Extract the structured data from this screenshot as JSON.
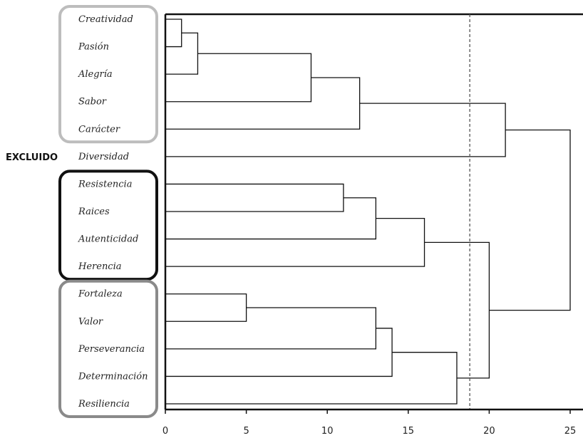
{
  "chart_data": {
    "type": "dendrogram",
    "orientation": "horizontal",
    "xlim": [
      0,
      25
    ],
    "x_ticks": [
      0,
      5,
      10,
      15,
      20,
      25
    ],
    "cut_line": {
      "x": 18.8,
      "style": "dashed"
    },
    "leaves": [
      "Creatividad",
      "Pasión",
      "Alegría",
      "Sabor",
      "Carácter",
      "Diversidad",
      "Resistencia",
      "Raices",
      "Autenticidad",
      "Herencia",
      "Fortaleza",
      "Valor",
      "Perseverancia",
      "Determinación",
      "Resiliencia"
    ],
    "merges": [
      {
        "id": "m1",
        "children": [
          "L0",
          "L1"
        ],
        "height": 1
      },
      {
        "id": "m2",
        "children": [
          "m1",
          "L2"
        ],
        "height": 2
      },
      {
        "id": "m3",
        "children": [
          "m2",
          "L3"
        ],
        "height": 9
      },
      {
        "id": "m4",
        "children": [
          "m3",
          "L4"
        ],
        "height": 12
      },
      {
        "id": "m5",
        "children": [
          "m4",
          "L5"
        ],
        "height": 21
      },
      {
        "id": "m6",
        "children": [
          "L6",
          "L7"
        ],
        "height": 11
      },
      {
        "id": "m7",
        "children": [
          "m6",
          "L8"
        ],
        "height": 13
      },
      {
        "id": "m8",
        "children": [
          "m7",
          "L9"
        ],
        "height": 16
      },
      {
        "id": "m9",
        "children": [
          "L10",
          "L11"
        ],
        "height": 5
      },
      {
        "id": "m10",
        "children": [
          "m9",
          "L12"
        ],
        "height": 13
      },
      {
        "id": "m11",
        "children": [
          "m10",
          "L13"
        ],
        "height": 14
      },
      {
        "id": "m12",
        "children": [
          "m11",
          "L14"
        ],
        "height": 18
      },
      {
        "id": "m13",
        "children": [
          "m8",
          "m12"
        ],
        "height": 20
      },
      {
        "id": "m14",
        "children": [
          "m5",
          "m13"
        ],
        "height": 25
      }
    ],
    "groups": [
      {
        "members": [
          "Creatividad",
          "Pasión",
          "Alegría",
          "Sabor",
          "Carácter"
        ],
        "color": "#bdbdbd"
      },
      {
        "members": [
          "Resistencia",
          "Raices",
          "Autenticidad",
          "Herencia"
        ],
        "color": "#111111"
      },
      {
        "members": [
          "Fortaleza",
          "Valor",
          "Perseverancia",
          "Determinación",
          "Resiliencia"
        ],
        "color": "#8a8a8a"
      }
    ],
    "excluded": {
      "label": "EXCLUIDO",
      "leaf": "Diversidad"
    },
    "colors": {
      "lines": "#111111",
      "cut_line": "#555555"
    }
  }
}
